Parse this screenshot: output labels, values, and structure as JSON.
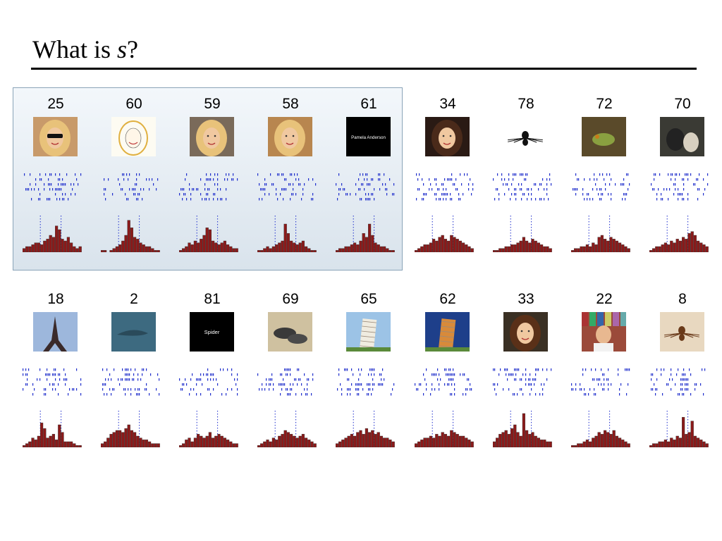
{
  "slide": {
    "title_prefix": "What is ",
    "title_var": "s",
    "title_suffix": "?"
  },
  "colors": {
    "raster": "#1f2ecc",
    "bar_fill": "#8b1a1a",
    "bar_stroke": "#333333",
    "highlight_bg": "#dfe8f0"
  },
  "cells": [
    {
      "label": "25",
      "icon": "blonde-woman-sunglasses-photo",
      "highlighted": true,
      "hist": [
        2,
        3,
        3,
        4,
        5,
        5,
        4,
        6,
        7,
        9,
        8,
        14,
        12,
        7,
        6,
        8,
        5,
        3,
        2,
        3
      ]
    },
    {
      "label": "60",
      "icon": "sketch-blonde-portrait",
      "highlighted": true,
      "hist": [
        1,
        1,
        0,
        1,
        2,
        3,
        4,
        6,
        9,
        17,
        13,
        8,
        7,
        5,
        4,
        3,
        3,
        2,
        1,
        1
      ]
    },
    {
      "label": "59",
      "icon": "blonde-woman-event-photo",
      "highlighted": true,
      "hist": [
        1,
        2,
        3,
        5,
        4,
        6,
        5,
        7,
        9,
        13,
        12,
        6,
        5,
        4,
        5,
        6,
        4,
        3,
        2,
        2
      ]
    },
    {
      "label": "58",
      "icon": "blonde-woman-closeup-photo",
      "highlighted": true,
      "hist": [
        1,
        1,
        2,
        3,
        2,
        3,
        4,
        5,
        6,
        15,
        10,
        6,
        5,
        4,
        5,
        6,
        3,
        2,
        1,
        1
      ]
    },
    {
      "label": "61",
      "icon": "text-card-pamela-anderson",
      "text": "Pamela Anderson",
      "highlighted": true,
      "hist": [
        1,
        2,
        2,
        3,
        3,
        4,
        5,
        4,
        6,
        10,
        8,
        15,
        9,
        5,
        4,
        3,
        3,
        2,
        1,
        1
      ]
    },
    {
      "label": "34",
      "icon": "brunette-woman-photo",
      "highlighted": false,
      "hist": [
        1,
        2,
        3,
        4,
        4,
        5,
        7,
        6,
        8,
        9,
        7,
        6,
        9,
        8,
        7,
        6,
        5,
        4,
        3,
        2
      ]
    },
    {
      "label": "78",
      "icon": "black-spider-drawing",
      "highlighted": false,
      "hist": [
        1,
        1,
        2,
        2,
        3,
        3,
        4,
        4,
        5,
        6,
        8,
        6,
        5,
        7,
        6,
        5,
        4,
        3,
        3,
        2
      ]
    },
    {
      "label": "72",
      "icon": "frog-photo",
      "highlighted": false,
      "hist": [
        1,
        2,
        2,
        3,
        3,
        4,
        3,
        5,
        4,
        8,
        9,
        7,
        6,
        8,
        7,
        6,
        5,
        4,
        3,
        2
      ]
    },
    {
      "label": "70",
      "icon": "animals-photo",
      "highlighted": false,
      "hist": [
        1,
        2,
        3,
        3,
        4,
        5,
        4,
        6,
        5,
        7,
        6,
        8,
        7,
        10,
        11,
        9,
        6,
        5,
        4,
        3
      ]
    },
    {
      "label": "18",
      "icon": "eiffel-tower-photo",
      "highlighted": false,
      "hist": [
        1,
        2,
        3,
        5,
        4,
        6,
        13,
        10,
        5,
        6,
        7,
        4,
        12,
        8,
        3,
        3,
        3,
        2,
        1,
        1
      ]
    },
    {
      "label": "2",
      "icon": "dolphin-photo",
      "highlighted": false,
      "hist": [
        2,
        3,
        5,
        7,
        8,
        9,
        9,
        8,
        10,
        12,
        9,
        8,
        6,
        5,
        4,
        4,
        3,
        2,
        2,
        2
      ]
    },
    {
      "label": "81",
      "icon": "text-card-spider",
      "text": "Spider",
      "highlighted": false,
      "hist": [
        1,
        2,
        4,
        5,
        3,
        5,
        7,
        6,
        5,
        6,
        8,
        5,
        6,
        7,
        6,
        5,
        4,
        3,
        2,
        2
      ]
    },
    {
      "label": "69",
      "icon": "seals-photo",
      "highlighted": false,
      "hist": [
        1,
        2,
        3,
        4,
        3,
        5,
        4,
        6,
        7,
        9,
        8,
        7,
        6,
        5,
        6,
        7,
        5,
        4,
        3,
        2
      ]
    },
    {
      "label": "65",
      "icon": "leaning-tower-pisa-photo",
      "highlighted": false,
      "hist": [
        2,
        3,
        4,
        5,
        6,
        7,
        6,
        8,
        9,
        7,
        10,
        8,
        9,
        7,
        8,
        6,
        5,
        5,
        4,
        3
      ]
    },
    {
      "label": "62",
      "icon": "tower-of-pisa-orange-photo",
      "highlighted": false,
      "hist": [
        2,
        3,
        4,
        5,
        5,
        6,
        5,
        7,
        6,
        8,
        7,
        6,
        9,
        8,
        7,
        6,
        6,
        5,
        4,
        3
      ]
    },
    {
      "label": "33",
      "icon": "curly-haired-woman-photo",
      "highlighted": false,
      "hist": [
        3,
        5,
        7,
        8,
        9,
        7,
        10,
        12,
        8,
        6,
        18,
        9,
        7,
        8,
        6,
        5,
        4,
        4,
        3,
        3
      ]
    },
    {
      "label": "22",
      "icon": "bald-man-bookshelf-photo",
      "highlighted": false,
      "hist": [
        1,
        1,
        2,
        2,
        3,
        4,
        3,
        5,
        6,
        8,
        7,
        9,
        8,
        7,
        9,
        6,
        5,
        4,
        3,
        2
      ]
    },
    {
      "label": "8",
      "icon": "brown-spider-photo",
      "highlighted": false,
      "hist": [
        1,
        2,
        2,
        3,
        3,
        4,
        3,
        5,
        4,
        6,
        5,
        16,
        7,
        8,
        14,
        6,
        5,
        4,
        3,
        2
      ]
    }
  ]
}
